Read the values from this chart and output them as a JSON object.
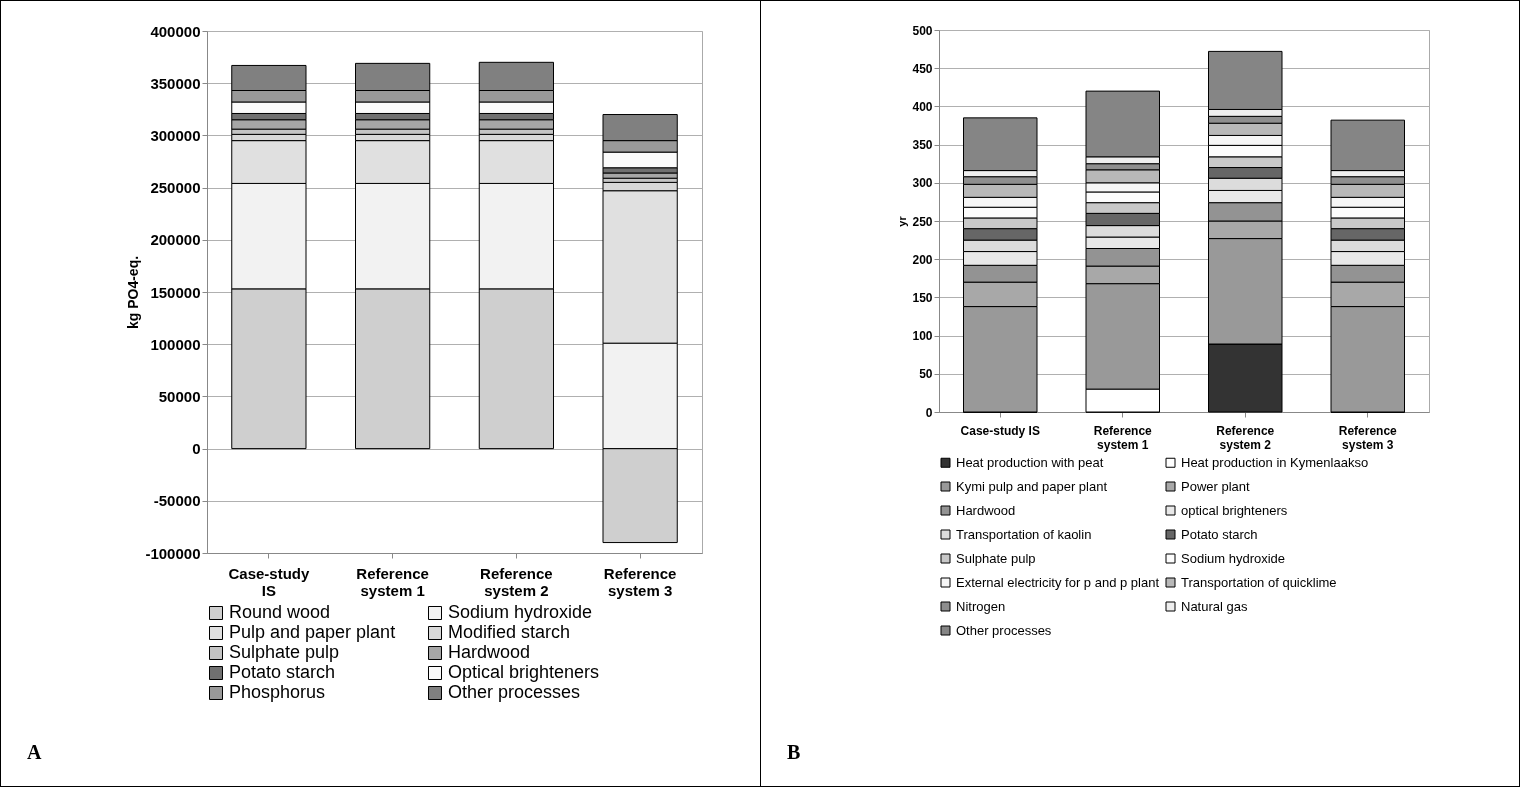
{
  "chart_data": [
    {
      "type": "bar",
      "stacked": true,
      "ylabel": "kg PO4-eq.",
      "categories": [
        "Case-study IS",
        "Reference system 1",
        "Reference system 2",
        "Reference system 3"
      ],
      "ylim": [
        -100000,
        400000
      ],
      "yticks": [
        -100000,
        -50000,
        0,
        50000,
        100000,
        150000,
        200000,
        250000,
        300000,
        350000,
        400000
      ],
      "grid": "y",
      "legend": "bottom",
      "annotations": [
        "A"
      ],
      "series": [
        {
          "name": "Round wood",
          "color": "#cfcfcf",
          "values": [
            153000,
            153000,
            153000,
            -90000
          ]
        },
        {
          "name": "Sodium hydroxide",
          "color": "#f2f2f2",
          "values": [
            101000,
            101000,
            101000,
            101000
          ]
        },
        {
          "name": "Pulp and paper plant",
          "color": "#e0e0e0",
          "values": [
            41000,
            41000,
            41000,
            146000
          ]
        },
        {
          "name": "Modified starch",
          "color": "#d8d8d8",
          "values": [
            6000,
            6000,
            6000,
            8000
          ]
        },
        {
          "name": "Sulphate pulp",
          "color": "#c4c4c4",
          "values": [
            5000,
            5000,
            5000,
            4000
          ]
        },
        {
          "name": "Hardwood",
          "color": "#a6a6a6",
          "values": [
            9000,
            9000,
            9000,
            5000
          ]
        },
        {
          "name": "Potato starch",
          "color": "#707070",
          "values": [
            6000,
            6000,
            6000,
            5000
          ]
        },
        {
          "name": "Optical brighteners",
          "color": "#fafafa",
          "values": [
            11000,
            11000,
            11000,
            15000
          ]
        },
        {
          "name": "Phosphorus",
          "color": "#999999",
          "values": [
            11000,
            11000,
            11000,
            11000
          ]
        },
        {
          "name": "Other processes",
          "color": "#808080",
          "values": [
            24000,
            26000,
            27000,
            25000
          ]
        }
      ]
    },
    {
      "type": "bar",
      "stacked": true,
      "ylabel": "yr",
      "categories": [
        "Case-study IS",
        "Reference system 1",
        "Reference system 2",
        "Reference system 3"
      ],
      "ylim": [
        0,
        500
      ],
      "yticks": [
        0,
        50,
        100,
        150,
        200,
        250,
        300,
        350,
        400,
        450,
        500
      ],
      "grid": "y",
      "legend": "bottom",
      "annotations": [
        "B"
      ],
      "series": [
        {
          "name": "Heat production with peat",
          "color": "#333333",
          "values": [
            0,
            0,
            89,
            0
          ]
        },
        {
          "name": "Heat production in Kymenlaakso",
          "color": "#ffffff",
          "values": [
            0,
            30,
            0,
            0
          ]
        },
        {
          "name": "Kymi pulp and paper plant",
          "color": "#999999",
          "values": [
            138,
            138,
            138,
            138
          ]
        },
        {
          "name": "Power plant",
          "color": "#a8a8a8",
          "values": [
            32,
            23,
            23,
            32
          ]
        },
        {
          "name": "Hardwood",
          "color": "#939393",
          "values": [
            22,
            23,
            24,
            22
          ]
        },
        {
          "name": "optical brighteners",
          "color": "#e8e8e8",
          "values": [
            18,
            15,
            16,
            18
          ]
        },
        {
          "name": "Transportation of kaolin",
          "color": "#dcdcdc",
          "values": [
            15,
            15,
            16,
            15
          ]
        },
        {
          "name": "Potato starch",
          "color": "#666666",
          "values": [
            15,
            16,
            14,
            15
          ]
        },
        {
          "name": "Sulphate pulp",
          "color": "#c8c8c8",
          "values": [
            14,
            14,
            14,
            14
          ]
        },
        {
          "name": "Sodium hydroxide",
          "color": "#fcfcfc",
          "values": [
            14,
            14,
            15,
            14
          ]
        },
        {
          "name": "External electricity for p and p plant",
          "color": "#f6f6f6",
          "values": [
            13,
            12,
            13,
            13
          ]
        },
        {
          "name": "Transportation of quicklime",
          "color": "#b8b8b8",
          "values": [
            17,
            17,
            16,
            17
          ]
        },
        {
          "name": "Nitrogen",
          "color": "#8e8e8e",
          "values": [
            10,
            8,
            9,
            10
          ]
        },
        {
          "name": "Natural gas",
          "color": "#eeeeee",
          "values": [
            8,
            9,
            9,
            8
          ]
        },
        {
          "name": "Other processes",
          "color": "#858585",
          "values": [
            69,
            86,
            76,
            66
          ]
        }
      ]
    }
  ]
}
